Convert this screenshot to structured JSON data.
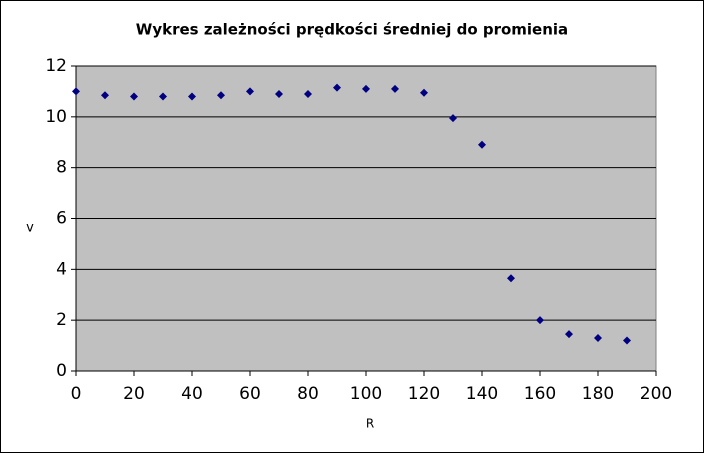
{
  "chart_data": {
    "type": "scatter",
    "title": "Wykres zależności prędkości średniej do promienia",
    "x_label": "R",
    "y_label": "v",
    "x": [
      0,
      10,
      20,
      30,
      40,
      50,
      60,
      70,
      80,
      90,
      100,
      110,
      120,
      130,
      140,
      150,
      160,
      170,
      180,
      190
    ],
    "values": [
      11.0,
      10.85,
      10.8,
      10.8,
      10.8,
      10.85,
      11.0,
      10.9,
      10.9,
      11.15,
      11.1,
      11.1,
      10.95,
      9.95,
      8.9,
      3.65,
      2.0,
      1.45,
      1.3,
      1.2
    ],
    "color": "#000080",
    "xlim": [
      0,
      200
    ],
    "xticks": [
      0,
      20,
      40,
      60,
      80,
      100,
      120,
      140,
      160,
      180,
      200
    ],
    "ylim": [
      0,
      12
    ],
    "yticks": [
      0,
      2,
      4,
      6,
      8,
      10,
      12
    ],
    "grid": true
  }
}
